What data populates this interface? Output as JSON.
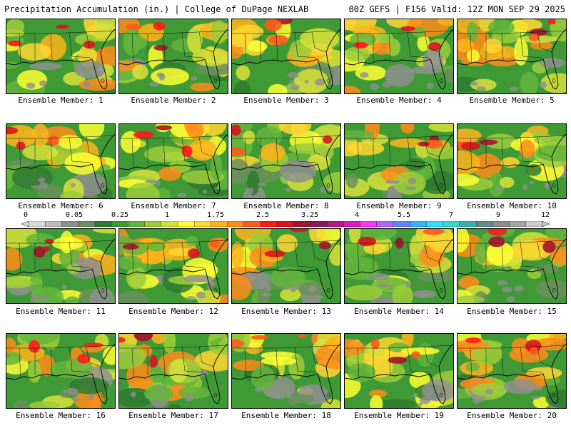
{
  "header": {
    "title": "Precipitation Accumulation (in.) | College of DuPage NEXLAB",
    "run_info": "00Z GEFS | F156 Valid: 12Z MON SEP 29 2025"
  },
  "legend": {
    "labels": [
      "0",
      "0.05",
      "0.25",
      "1",
      "1.75",
      "2.5",
      "3.25",
      "4",
      "5.5",
      "7",
      "9",
      "12"
    ],
    "colors": [
      "#d9d9d9",
      "#bdbdbd",
      "#8f8f8f",
      "#6b8f5c",
      "#2f7a2f",
      "#3f9a36",
      "#63b53c",
      "#9ccc3a",
      "#d7e039",
      "#ffff33",
      "#ffd633",
      "#ffb31a",
      "#ff8c1a",
      "#ff5a1a",
      "#ff1a1a",
      "#d9141e",
      "#a3142e",
      "#8b1a5a",
      "#b3197f",
      "#e01ab8",
      "#ff33ff",
      "#b366ff",
      "#6680ff",
      "#33b3ff",
      "#33e0ff",
      "#33d9cc",
      "#33b3a3",
      "#668c8c",
      "#8c8c8c",
      "#a6a6a6",
      "#cccccc"
    ]
  },
  "panels": [
    {
      "caption": "Ensemble Member: 1"
    },
    {
      "caption": "Ensemble Member: 2"
    },
    {
      "caption": "Ensemble Member: 3"
    },
    {
      "caption": "Ensemble Member: 4"
    },
    {
      "caption": "Ensemble Member: 5"
    },
    {
      "caption": "Ensemble Member: 6"
    },
    {
      "caption": "Ensemble Member: 7"
    },
    {
      "caption": "Ensemble Member: 8"
    },
    {
      "caption": "Ensemble Member: 9"
    },
    {
      "caption": "Ensemble Member: 10"
    },
    {
      "caption": "Ensemble Member: 11"
    },
    {
      "caption": "Ensemble Member: 12"
    },
    {
      "caption": "Ensemble Member: 13"
    },
    {
      "caption": "Ensemble Member: 14"
    },
    {
      "caption": "Ensemble Member: 15"
    },
    {
      "caption": "Ensemble Member: 16"
    },
    {
      "caption": "Ensemble Member: 17"
    },
    {
      "caption": "Ensemble Member: 18"
    },
    {
      "caption": "Ensemble Member: 19"
    },
    {
      "caption": "Ensemble Member: 20"
    }
  ]
}
